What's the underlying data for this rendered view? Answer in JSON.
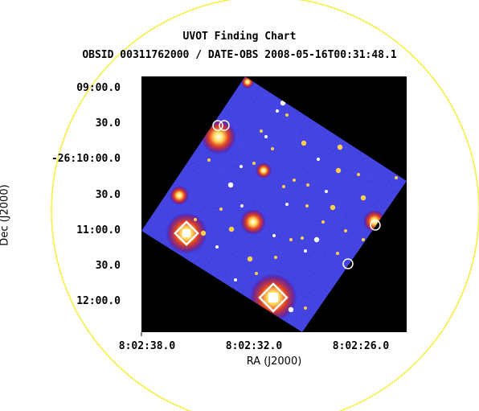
{
  "title": "UVOT Finding Chart",
  "subtitle": "OBSID 00311762000 / DATE-OBS 2008-05-16T00:31:48.1",
  "axes": {
    "xlabel": "RA (J2000)",
    "ylabel": "Dec (J2000)",
    "ra_ticks": [
      "8:02:38.0",
      "8:02:32.0",
      "8:02:26.0"
    ],
    "dec_ticks": [
      "09:00.0",
      "30.0",
      "-26:10:00.0",
      "30.0",
      "11:00.0",
      "30.0",
      "12:00.0"
    ]
  },
  "colors": {
    "field_circle": "#f5ee3a",
    "image_background": "#000000",
    "sky": "#2a2ad6",
    "marker": "#ffffff"
  },
  "image": {
    "description_icon": "uvot-sky-image",
    "field_circle_icon": "yellow-field-circle"
  }
}
